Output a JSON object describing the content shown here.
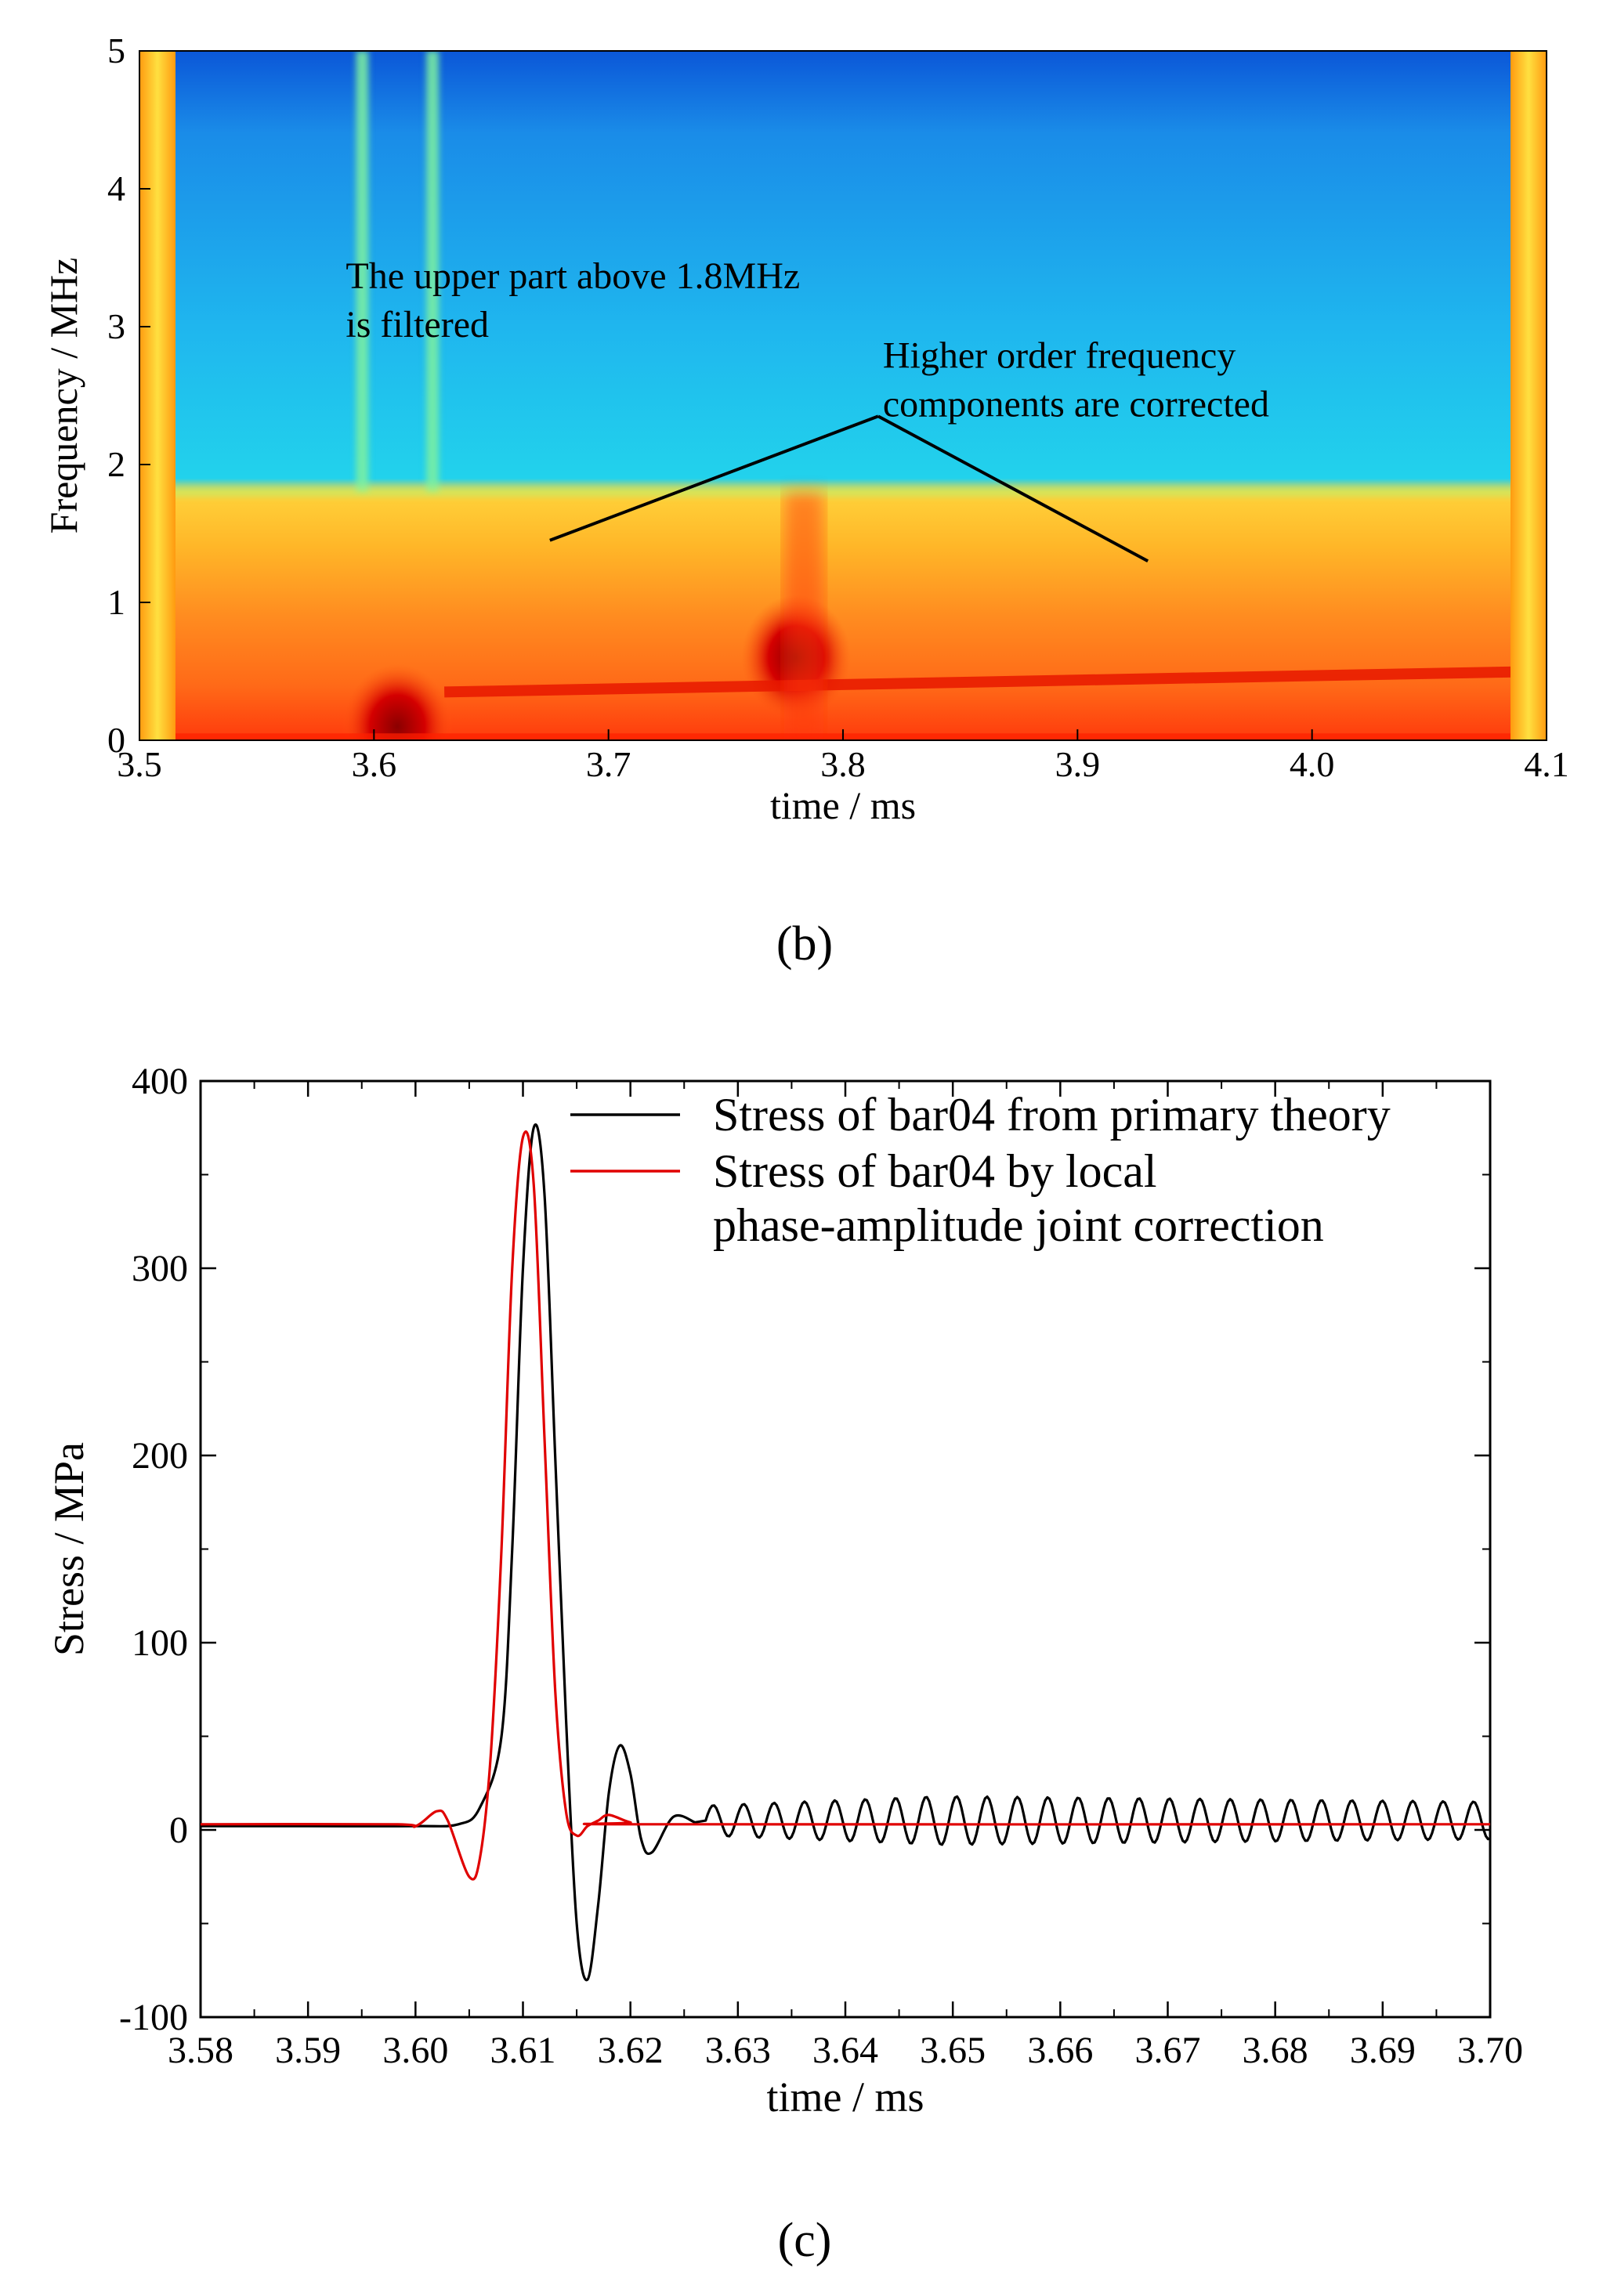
{
  "panels": {
    "b": {
      "label": "(b)"
    },
    "c": {
      "label": "(c)"
    }
  },
  "chart_data": [
    {
      "id": "b",
      "type": "heatmap",
      "title": "",
      "xlabel": "time / ms",
      "ylabel": "Frequency / MHz",
      "xlim": [
        3.5,
        4.1
      ],
      "ylim": [
        0,
        5
      ],
      "xticks": [
        "3.5",
        "3.6",
        "3.7",
        "3.8",
        "3.9",
        "4.0",
        "4.1"
      ],
      "yticks": [
        "0",
        "1",
        "2",
        "3",
        "4",
        "5"
      ],
      "colormap": [
        "#0b4fd6",
        "#1fa3f0",
        "#22e0e8",
        "#8ef07a",
        "#f5f03a",
        "#ffb020",
        "#ff5a10",
        "#d40000"
      ],
      "filter_cutoff_mhz": 1.8,
      "annotations": [
        {
          "text_lines": [
            "The upper part above 1.8MHz",
            "is filtered"
          ],
          "x": 3.62,
          "y": 3.05
        },
        {
          "text_lines": [
            "Higher order frequency",
            "components are corrected"
          ],
          "x": 3.82,
          "y": 2.6,
          "arrow_vertex": [
            3.815,
            2.35
          ],
          "arrow_ends": [
            [
              3.675,
              1.45
            ],
            [
              3.93,
              1.3
            ]
          ]
        }
      ],
      "features": {
        "vertical_stripes_time": [
          3.595,
          3.625
        ],
        "hot_spots": [
          {
            "t": 3.61,
            "f": 0.1
          },
          {
            "t": 3.78,
            "f": 0.6
          }
        ],
        "ridge": {
          "from": [
            3.63,
            0.35
          ],
          "to": [
            4.1,
            0.5
          ]
        }
      }
    },
    {
      "id": "c",
      "type": "line",
      "title": "",
      "xlabel": "time / ms",
      "ylabel": "Stress / MPa",
      "xlim": [
        3.58,
        3.7
      ],
      "ylim": [
        -100,
        400
      ],
      "xticks": [
        "3.58",
        "3.59",
        "3.60",
        "3.61",
        "3.62",
        "3.63",
        "3.64",
        "3.65",
        "3.66",
        "3.67",
        "3.68",
        "3.69",
        "3.70"
      ],
      "yticks": [
        "-100",
        "0",
        "100",
        "200",
        "300",
        "400"
      ],
      "legend_position": "top-right",
      "series": [
        {
          "name": "Stress of bar04 from primary theory",
          "color": "#000000",
          "x": [
            3.58,
            3.59,
            3.6,
            3.604,
            3.606,
            3.608,
            3.609,
            3.61,
            3.611,
            3.612,
            3.613,
            3.614,
            3.615,
            3.616,
            3.617,
            3.618,
            3.619,
            3.62,
            3.621,
            3.622,
            3.624,
            3.626
          ],
          "y": [
            2,
            2,
            2,
            3,
            12,
            50,
            150,
            300,
            375,
            340,
            200,
            60,
            -50,
            -80,
            -40,
            20,
            45,
            30,
            -5,
            -12,
            7,
            4
          ],
          "oscillation": {
            "start": 3.627,
            "end": 3.7,
            "period": 0.00283,
            "amp_start": 8,
            "amp_peak": 13,
            "amp_end": 10,
            "offset": 5
          }
        },
        {
          "name_lines": [
            "Stress of bar04 by local",
            "phase-amplitude joint correction"
          ],
          "color": "#e00000",
          "x": [
            3.58,
            3.598,
            3.6,
            3.602,
            3.603,
            3.605,
            3.606,
            3.607,
            3.608,
            3.609,
            3.61,
            3.611,
            3.612,
            3.613,
            3.614,
            3.615,
            3.616,
            3.617,
            3.618,
            3.62,
            3.622,
            3.7
          ],
          "y": [
            3,
            3,
            2,
            10,
            5,
            -25,
            -15,
            40,
            150,
            300,
            370,
            345,
            210,
            75,
            10,
            -3,
            2,
            5,
            8,
            4,
            3,
            3
          ]
        }
      ]
    }
  ]
}
